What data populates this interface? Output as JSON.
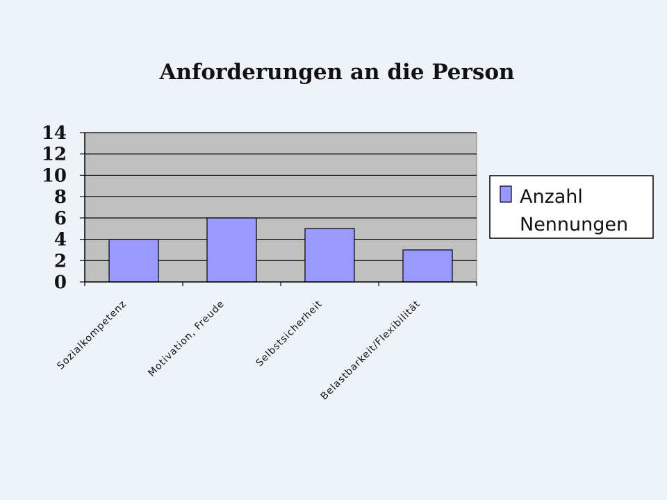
{
  "chart_data": {
    "type": "bar",
    "title": "Anforderungen an die Person",
    "categories": [
      "Sozialkompetenz",
      "Motivation, Freude",
      "Selbstsicherheit",
      "Belastbarkeit/Flexibilität"
    ],
    "series": [
      {
        "name_lines": [
          "Anzahl",
          "Nennungen"
        ],
        "values": [
          4,
          6,
          5,
          3
        ],
        "color": "#9999ff"
      }
    ],
    "ylim": [
      0,
      14
    ],
    "yticks": [
      0,
      2,
      4,
      6,
      8,
      10,
      12,
      14
    ],
    "grid": true,
    "legend_position": "right",
    "plot_background": "#c0c0c0"
  }
}
